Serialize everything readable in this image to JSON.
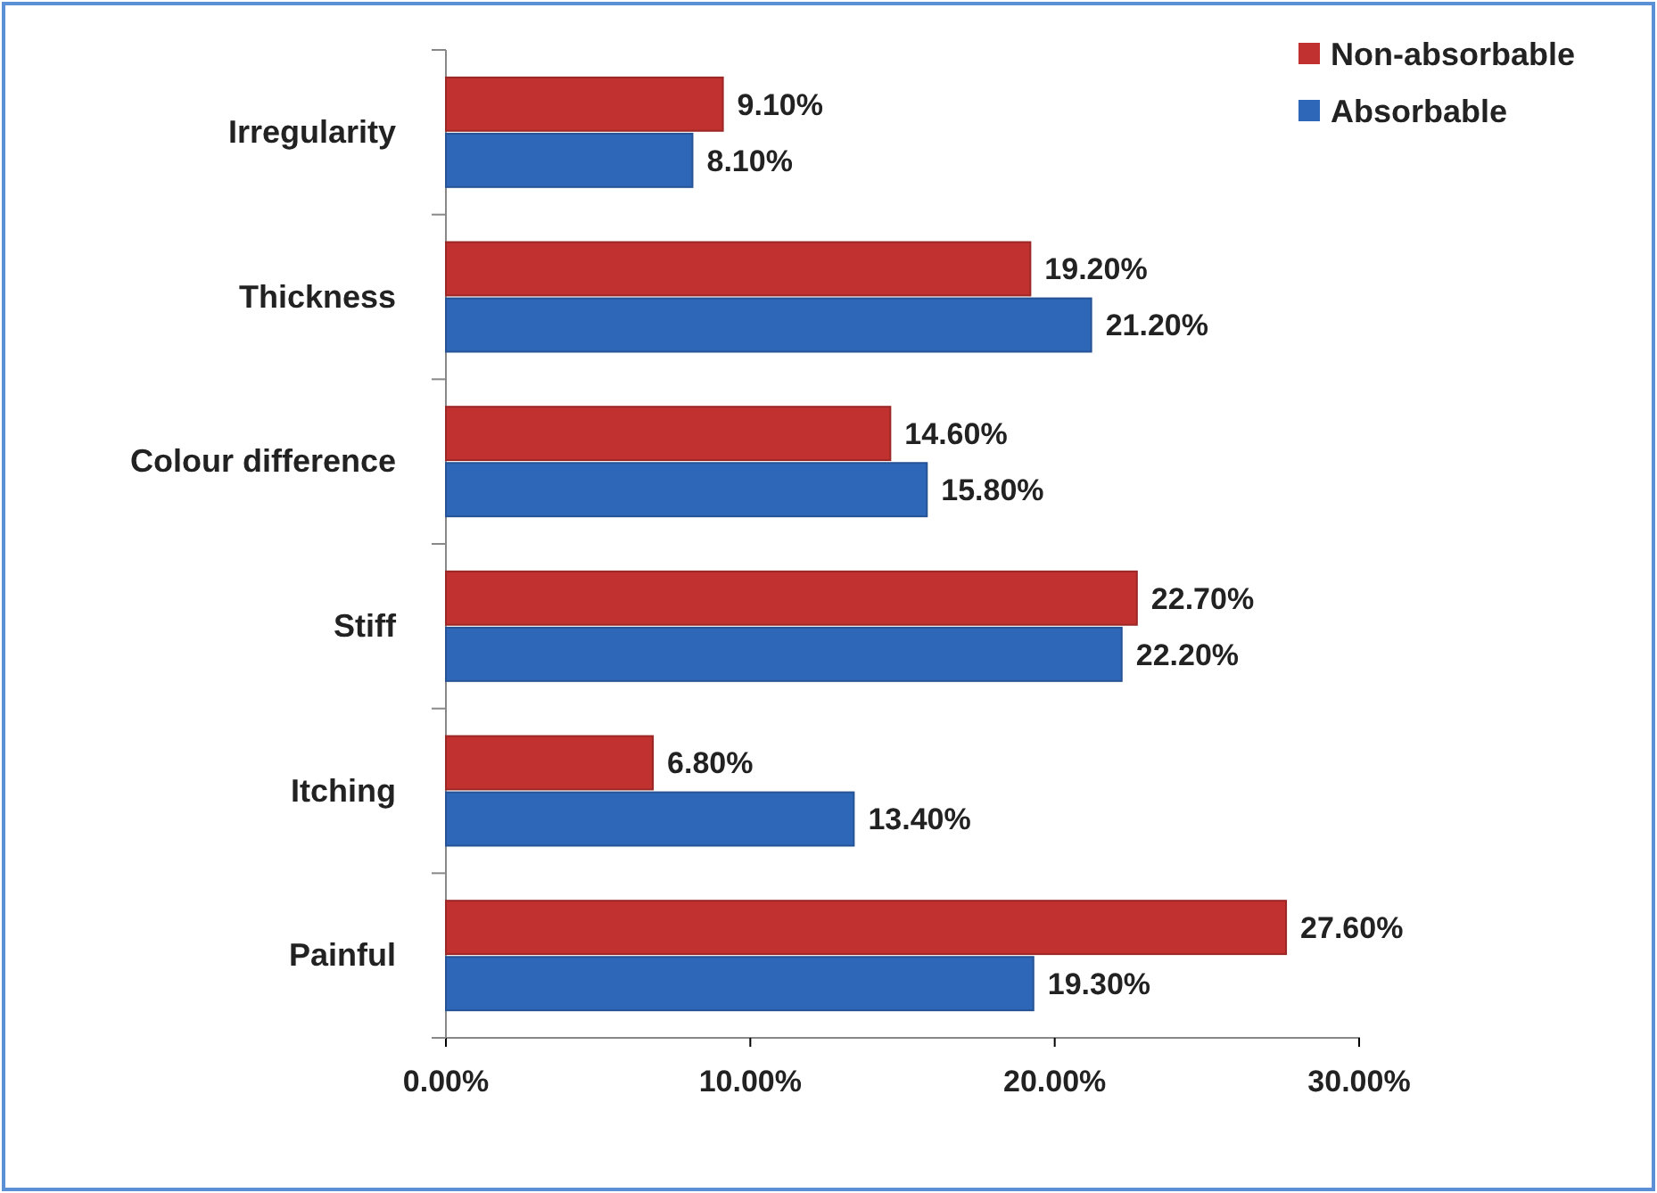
{
  "chart_data": {
    "type": "bar",
    "orientation": "horizontal",
    "categories": [
      "Irregularity",
      "Thickness",
      "Colour difference",
      "Stiff",
      "Itching",
      "Painful"
    ],
    "series": [
      {
        "name": "Non-absorbable",
        "color": "#c0312f",
        "values": [
          9.1,
          19.2,
          14.6,
          22.7,
          6.8,
          27.6
        ],
        "value_labels": [
          "9.10%",
          "19.20%",
          "14.60%",
          "22.70%",
          "6.80%",
          "27.60%"
        ]
      },
      {
        "name": "Absorbable",
        "color": "#2f67b8",
        "values": [
          8.1,
          21.2,
          15.8,
          22.2,
          13.4,
          19.3
        ],
        "value_labels": [
          "8.10%",
          "21.20%",
          "15.80%",
          "22.20%",
          "13.40%",
          "19.30%"
        ]
      }
    ],
    "xlim": [
      0,
      30
    ],
    "xticks": [
      {
        "value": 0,
        "label": "0.00%"
      },
      {
        "value": 10,
        "label": "10.00%"
      },
      {
        "value": 20,
        "label": "20.00%"
      },
      {
        "value": 30,
        "label": "30.00%"
      }
    ],
    "grid": false,
    "legend": "top right"
  }
}
